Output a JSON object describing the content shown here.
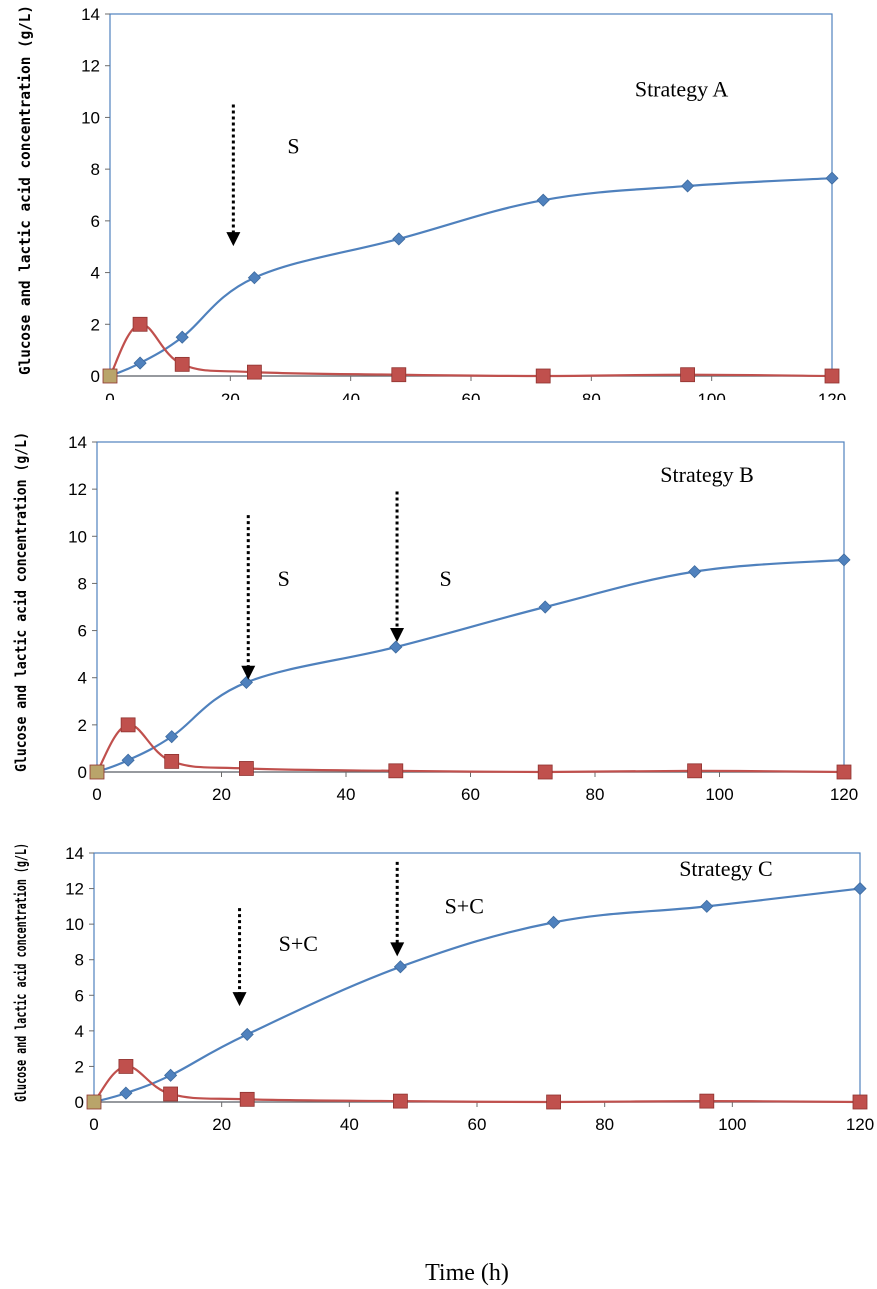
{
  "chart_data": [
    {
      "type": "line",
      "title": "",
      "ylabel": "Glucose and lactic acid concentration (g/L)",
      "xlabel": "",
      "xlim": [
        0,
        120
      ],
      "ylim": [
        0,
        14
      ],
      "xticks": [
        0,
        20,
        40,
        60,
        80,
        100,
        120
      ],
      "yticks": [
        0,
        2,
        4,
        6,
        8,
        10,
        12,
        14
      ],
      "colors": {
        "series_1": "#4f81bd",
        "series_2": "#c0504d"
      },
      "series": [
        {
          "marker": "diamond",
          "x": [
            0,
            5,
            12,
            24,
            48,
            72,
            96,
            120
          ],
          "y": [
            0,
            0.5,
            1.5,
            3.8,
            5.3,
            6.8,
            7.35,
            7.65
          ]
        },
        {
          "marker": "square",
          "x": [
            0,
            5,
            12,
            24,
            48,
            72,
            96,
            120
          ],
          "y": [
            0,
            2.0,
            0.45,
            0.15,
            0.05,
            0,
            0.05,
            0
          ]
        }
      ],
      "annotations": [
        {
          "text": "Strategy A",
          "x": 95,
          "y": 10.8
        },
        {
          "text": "S",
          "x": 30.5,
          "y": 8.6
        }
      ],
      "arrows": [
        {
          "x": 20.5,
          "y_from": 10.5,
          "y_to": 5.1
        }
      ]
    },
    {
      "type": "line",
      "title": "",
      "ylabel": "Glucose and lactic acid concentration (g/L)",
      "xlabel": "",
      "xlim": [
        0,
        120
      ],
      "ylim": [
        0,
        14
      ],
      "xticks": [
        0,
        20,
        40,
        60,
        80,
        100,
        120
      ],
      "yticks": [
        0,
        2,
        4,
        6,
        8,
        10,
        12,
        14
      ],
      "colors": {
        "series_1": "#4f81bd",
        "series_2": "#c0504d"
      },
      "series": [
        {
          "marker": "diamond",
          "x": [
            0,
            5,
            12,
            24,
            48,
            72,
            96,
            120
          ],
          "y": [
            0,
            0.5,
            1.5,
            3.8,
            5.3,
            7.0,
            8.5,
            9.0
          ]
        },
        {
          "marker": "square",
          "x": [
            0,
            5,
            12,
            24,
            48,
            72,
            96,
            120
          ],
          "y": [
            0,
            2.0,
            0.45,
            0.15,
            0.05,
            0,
            0.05,
            0
          ]
        }
      ],
      "annotations": [
        {
          "text": "Strategy B",
          "x": 98,
          "y": 12.3
        },
        {
          "text": "S",
          "x": 30,
          "y": 7.9
        },
        {
          "text": "S",
          "x": 56,
          "y": 7.9
        }
      ],
      "arrows": [
        {
          "x": 24.3,
          "y_from": 10.9,
          "y_to": 4.0
        },
        {
          "x": 48.2,
          "y_from": 11.9,
          "y_to": 5.6
        }
      ]
    },
    {
      "type": "line",
      "title": "",
      "ylabel": "Glucose and lactic acid concentration (g/L)",
      "xlabel": "Time (h)",
      "xlim": [
        0,
        120
      ],
      "ylim": [
        0,
        14
      ],
      "xticks": [
        0,
        20,
        40,
        60,
        80,
        100,
        120
      ],
      "yticks": [
        0,
        2,
        4,
        6,
        8,
        10,
        12,
        14
      ],
      "colors": {
        "series_1": "#4f81bd",
        "series_2": "#c0504d"
      },
      "series": [
        {
          "marker": "diamond",
          "x": [
            0,
            5,
            12,
            24,
            48,
            72,
            96,
            120
          ],
          "y": [
            0,
            0.5,
            1.5,
            3.8,
            7.6,
            10.1,
            11.0,
            12.0
          ]
        },
        {
          "marker": "square",
          "x": [
            0,
            5,
            12,
            24,
            48,
            72,
            96,
            120
          ],
          "y": [
            0,
            2.0,
            0.45,
            0.15,
            0.05,
            0,
            0.05,
            0
          ]
        }
      ],
      "annotations": [
        {
          "text": "Strategy C",
          "x": 99,
          "y": 12.7
        },
        {
          "text": "S+C",
          "x": 32,
          "y": 8.5
        },
        {
          "text": "S+C",
          "x": 58,
          "y": 10.6
        }
      ],
      "arrows": [
        {
          "x": 22.8,
          "y_from": 10.9,
          "y_to": 5.5
        },
        {
          "x": 47.5,
          "y_from": 13.5,
          "y_to": 8.3
        }
      ]
    }
  ]
}
